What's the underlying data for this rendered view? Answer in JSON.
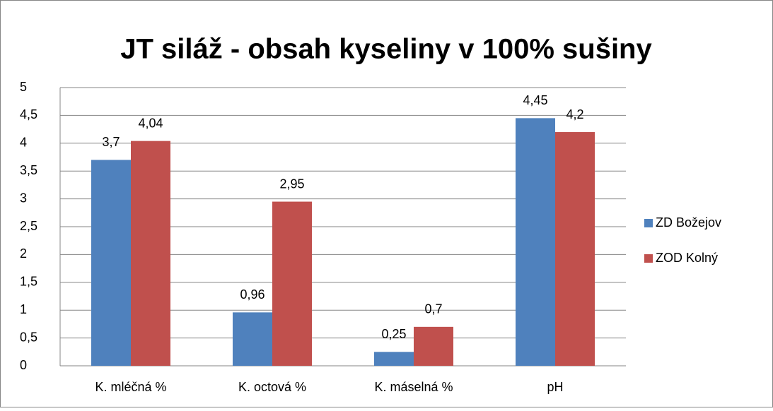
{
  "chart_data": {
    "type": "bar",
    "title": "JT siláž - obsah kyseliny v 100% sušiny",
    "categories": [
      "K. mléčná %",
      "K. octová %",
      "K. máselná %",
      "pH"
    ],
    "series": [
      {
        "name": "ZD Božejov",
        "color": "#4f81bd",
        "values": [
          3.7,
          0.96,
          0.25,
          4.45
        ],
        "value_labels": [
          "3,7",
          "0,96",
          "0,25",
          "4,45"
        ]
      },
      {
        "name": "ZOD Kolný",
        "color": "#c0504d",
        "values": [
          4.04,
          2.95,
          0.7,
          4.2
        ],
        "value_labels": [
          "4,04",
          "2,95",
          "0,7",
          "4,2"
        ]
      }
    ],
    "ylim": [
      0,
      5
    ],
    "yticks": [
      0,
      {
        "value": 0.5,
        "label": "0,5"
      },
      1,
      {
        "value": 1.5,
        "label": "1,5"
      },
      2,
      {
        "value": 2.5,
        "label": "2,5"
      },
      3,
      {
        "value": 3.5,
        "label": "3,5"
      },
      4,
      {
        "value": 4.5,
        "label": "4,5"
      },
      5
    ],
    "grid": true,
    "legend": "right"
  }
}
